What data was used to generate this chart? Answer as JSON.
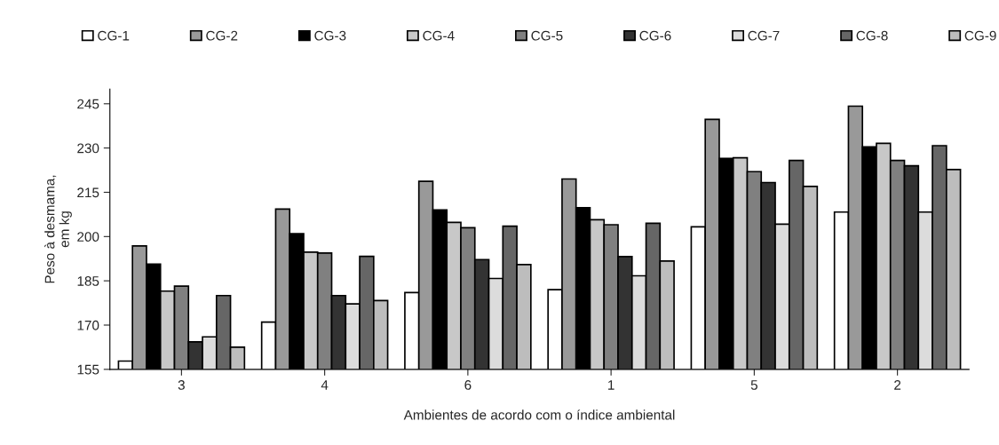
{
  "chart_data": {
    "type": "bar",
    "xlabel": "Ambientes de acordo com o índice ambiental",
    "ylabel": "Peso à desmama,\nem kg",
    "categories": [
      "3",
      "4",
      "6",
      "1",
      "5",
      "2"
    ],
    "ylim": [
      155,
      250
    ],
    "yticks": [
      155,
      170,
      185,
      200,
      215,
      230,
      245
    ],
    "grid": false,
    "legend": "top",
    "series": [
      {
        "name": "CG-1",
        "color": "#ffffff",
        "values": [
          157.8,
          171,
          181,
          182,
          203.3,
          208.3
        ]
      },
      {
        "name": "CG-2",
        "color": "#999999",
        "values": [
          196.8,
          209.3,
          218.7,
          219.5,
          239.7,
          244.2
        ]
      },
      {
        "name": "CG-3",
        "color": "#000000",
        "values": [
          190.7,
          201,
          209,
          209.8,
          226.5,
          230.4
        ]
      },
      {
        "name": "CG-4",
        "color": "#c8c8c8",
        "values": [
          181.5,
          194.7,
          204.8,
          205.7,
          226.7,
          231.6
        ]
      },
      {
        "name": "CG-5",
        "color": "#808080",
        "values": [
          183.2,
          194.4,
          203,
          204,
          222,
          225.8
        ]
      },
      {
        "name": "CG-6",
        "color": "#333333",
        "values": [
          164.3,
          180,
          192.2,
          193.2,
          218.3,
          224
        ]
      },
      {
        "name": "CG-7",
        "color": "#dcdcdc",
        "values": [
          166,
          177.2,
          185.8,
          186.7,
          204.2,
          208.3
        ]
      },
      {
        "name": "CG-8",
        "color": "#666666",
        "values": [
          180,
          193.3,
          203.5,
          204.5,
          225.8,
          230.8
        ]
      },
      {
        "name": "CG-9",
        "color": "#bdbdbd",
        "values": [
          162.5,
          178.3,
          190.5,
          191.7,
          217,
          222.7
        ]
      }
    ]
  }
}
